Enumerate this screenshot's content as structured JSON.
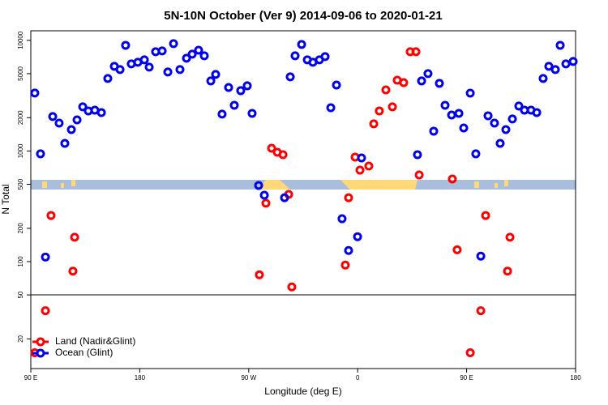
{
  "chart_data": {
    "type": "scatter",
    "title": "5N-10N October (Ver 9)   2014-09-06 to 2020-01-21",
    "x_label": "Longitude (deg E)",
    "y_label": "N Total",
    "ylog": true,
    "xlim": [
      90,
      540
    ],
    "ylim": [
      10.8,
      12200
    ],
    "xticks": [
      {
        "value": 90,
        "label": "90 E"
      },
      {
        "value": 180,
        "label": "180"
      },
      {
        "value": 270,
        "label": "90 W"
      },
      {
        "value": 360,
        "label": "0"
      },
      {
        "value": 450,
        "label": "90 E"
      },
      {
        "value": 540,
        "label": "180"
      }
    ],
    "yticks": [
      20,
      50,
      100,
      200,
      500,
      1000,
      2000,
      5000,
      10000
    ],
    "legend": "bottom-left",
    "series": [
      {
        "name": "Land (Nadir&Glint)",
        "color": "#ff0000",
        "x": [
          93.3,
          106.7,
          102.1,
          126.2,
          124.8,
          278.8,
          284.2,
          288.9,
          293.6,
          298.3,
          303.0,
          305.6,
          352.5,
          349.8,
          357.9,
          361.9,
          369.2,
          373.3,
          377.9,
          383.3,
          388.7,
          392.7,
          398.0,
          403.4,
          408.1,
          410.8,
          438.2,
          442.2,
          453.0,
          461.7,
          465.7,
          483.8,
          485.8
        ],
        "values": [
          15,
          261,
          36,
          166,
          82,
          76,
          337,
          1059,
          973,
          925,
          405,
          59,
          378,
          93,
          879,
          671,
          731,
          1758,
          2301,
          3565,
          2506,
          4365,
          4150,
          7889,
          7889,
          607,
          558,
          128,
          15,
          36,
          261,
          82,
          166
        ]
      },
      {
        "name": "Ocean (Glint)",
        "color": "#0000ee",
        "x": [
          93.3,
          98.0,
          102.1,
          108.1,
          113.4,
          118.1,
          123.5,
          128.2,
          132.9,
          137.5,
          142.9,
          148.3,
          153.6,
          159.0,
          163.7,
          168.3,
          173.0,
          178.4,
          183.8,
          187.8,
          193.1,
          198.5,
          203.2,
          207.9,
          213.2,
          218.6,
          223.3,
          228.6,
          233.3,
          238.7,
          242.7,
          248.0,
          253.4,
          258.1,
          263.4,
          268.8,
          272.8,
          278.2,
          282.9,
          299.6,
          304.3,
          308.3,
          313.7,
          318.4,
          323.0,
          328.4,
          333.1,
          337.8,
          342.5,
          347.1,
          352.5,
          359.9,
          363.2,
          409.4,
          412.8,
          418.1,
          422.8,
          427.5,
          432.2,
          437.6,
          443.6,
          447.6,
          453.0,
          457.6,
          461.7,
          467.7,
          473.0,
          477.7,
          482.4,
          487.8,
          493.1,
          497.8,
          503.2,
          507.9,
          513.2,
          517.9,
          523.3,
          527.3,
          532.0,
          538.0
        ],
        "values": [
          3340,
          942,
          110,
          2046,
          1786,
          1172,
          1560,
          1910,
          2506,
          2301,
          2339,
          2225,
          4520,
          5821,
          5445,
          9016,
          6124,
          6339,
          6668,
          5728,
          7889,
          8017,
          5176,
          9333,
          5445,
          6887,
          7499,
          8147,
          7244,
          4295,
          4920,
          2153,
          3750,
          2588,
          3508,
          3882,
          2188,
          488,
          398,
          378,
          4677,
          7244,
          9183,
          6668,
          6339,
          6668,
          7129,
          2460,
          3945,
          244,
          126,
          168,
          865,
          925,
          4295,
          5000,
          1510,
          4083,
          2588,
          2113,
          2188,
          1614,
          3334,
          942,
          112,
          2080,
          1786,
          1172,
          1560,
          1945,
          2547,
          2339,
          2339,
          2225,
          4520,
          5821,
          5445,
          9016,
          6124,
          6442
        ]
      }
    ]
  }
}
